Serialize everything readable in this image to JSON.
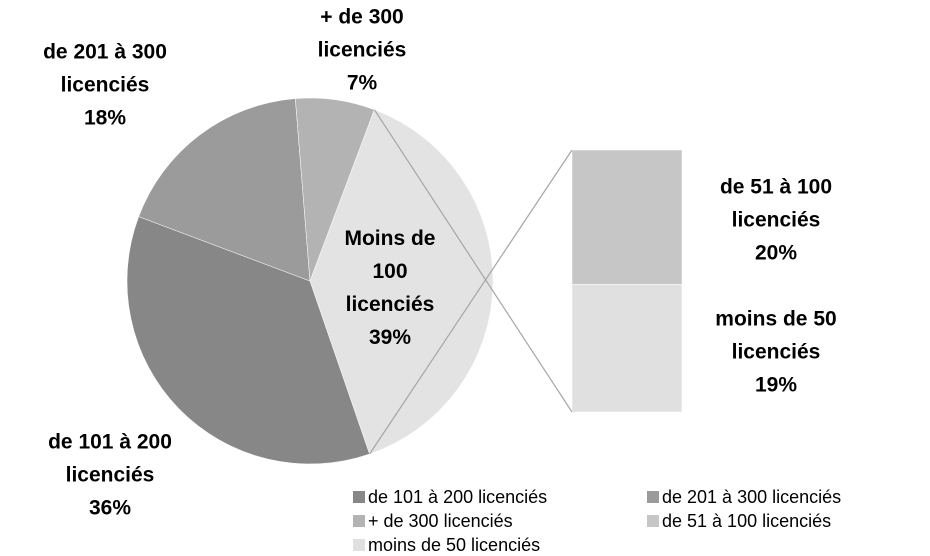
{
  "chart_data": {
    "type": "pie_of_bar",
    "categories": [
      "de 101 à 200 licenciés",
      "de 201 à 300 licenciés",
      "+ de 300 licenciés",
      "de 51 à 100 licenciés",
      "moins de 50 licenciés"
    ],
    "values": [
      36,
      18,
      7,
      20,
      19
    ],
    "value_labels": [
      "36%",
      "18%",
      "7%",
      "20%",
      "19%"
    ],
    "colors": [
      "#878787",
      "#9b9b9b",
      "#b3b3b3",
      "#c6c6c6",
      "#e0e0e0"
    ],
    "secondary_count": 2,
    "other_label": "Moins de 100 licenciés",
    "other_value": 39,
    "other_value_label": "39%",
    "other_color": "#e3e3e3",
    "legend": true
  }
}
